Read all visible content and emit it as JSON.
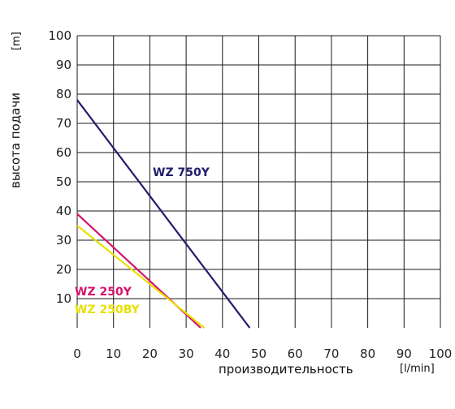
{
  "chart_data": {
    "type": "line",
    "title": "",
    "xlabel": "производительность",
    "xunit": "[l/min]",
    "ylabel": "высота подачи",
    "yunit": "[m]",
    "xlim": [
      0,
      100
    ],
    "ylim": [
      0,
      100
    ],
    "x_ticks": [
      "0",
      "10",
      "20",
      "30",
      "40",
      "50",
      "60",
      "70",
      "80",
      "90",
      "100"
    ],
    "y_ticks": [
      "10",
      "20",
      "30",
      "40",
      "50",
      "60",
      "70",
      "80",
      "90",
      "100"
    ],
    "grid": true,
    "series": [
      {
        "name": "WZ 750Y",
        "color": "#1f1d6b",
        "x": [
          0,
          47.5
        ],
        "y": [
          78,
          0
        ]
      },
      {
        "name": "WZ 250Y",
        "color": "#d4146e",
        "x": [
          0,
          34
        ],
        "y": [
          39,
          0
        ]
      },
      {
        "name": "WZ 250BY",
        "color": "#e8e000",
        "x": [
          0,
          35
        ],
        "y": [
          35,
          0
        ]
      }
    ]
  }
}
